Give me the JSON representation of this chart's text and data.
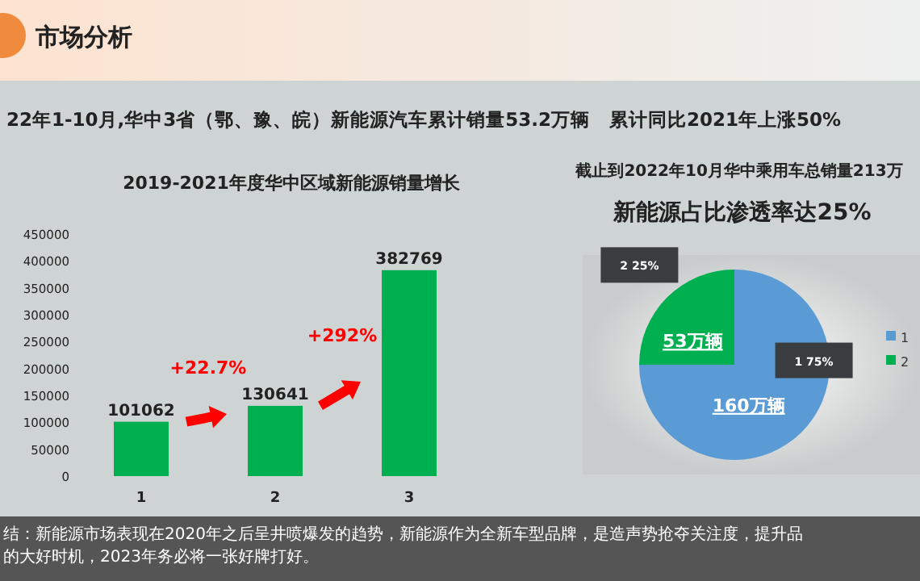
{
  "chart_data": [
    {
      "type": "other",
      "title": "市场分析",
      "subtitle": "22年1-10月,华中3省（鄂、豫、皖）新能源汽车累计销量53.2万辆　累计同比2021年上涨50%",
      "annotations": [
        "结：新能源市场表现在2020年之后呈井喷爆发的趋势，新能源作为全新车型品牌，是造声势抢夺关注度，提升品",
        "的大好时机，2023年务必将一张好牌打好。"
      ]
    },
    {
      "type": "bar",
      "title": "2019-2021年度华中区域新能源销量增长",
      "categories": [
        "1",
        "2",
        "3"
      ],
      "values": [
        101062,
        130641,
        382769
      ],
      "color": "#00b050",
      "data_labels": true,
      "ylim": [
        0,
        450000
      ],
      "yticks": [
        0,
        50000,
        100000,
        150000,
        200000,
        250000,
        300000,
        350000,
        400000,
        450000
      ],
      "grid": false,
      "annotations": [
        "+22.7%",
        "+292%"
      ]
    },
    {
      "type": "pie",
      "title": "截止到2022年10月华中乘用车总销量213万",
      "subtitle": "新能源占比渗透率达25%",
      "categories": [
        "1",
        "2"
      ],
      "values": [
        75,
        25
      ],
      "colors": [
        "#5b9bd5",
        "#00b050"
      ],
      "value_labels": [
        "1 75%",
        "2 25%"
      ],
      "annotations": [
        "160万辆",
        "53万辆"
      ],
      "legend": "right"
    }
  ]
}
